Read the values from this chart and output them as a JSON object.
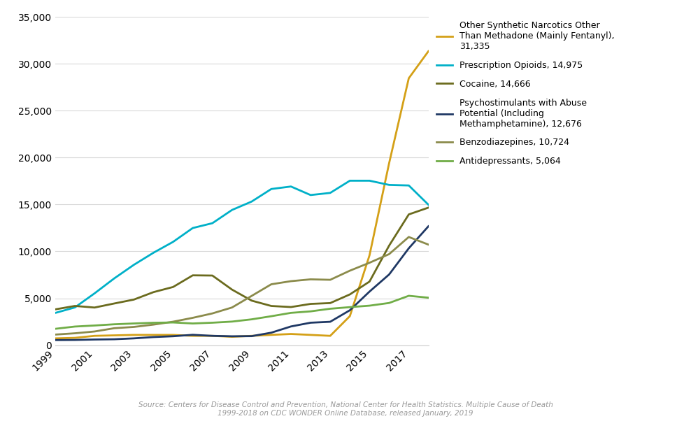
{
  "years": [
    1999,
    2000,
    2001,
    2002,
    2003,
    2004,
    2005,
    2006,
    2007,
    2008,
    2009,
    2010,
    2011,
    2012,
    2013,
    2014,
    2015,
    2016,
    2017,
    2018
  ],
  "series": {
    "fentanyl": {
      "label": "Other Synthetic Narcotics Other\nThan Methadone (Mainly Fentanyl),\n31,335",
      "color": "#D4A017",
      "values": [
        730,
        786,
        1000,
        1050,
        1100,
        1100,
        1100,
        1000,
        1000,
        900,
        1000,
        1100,
        1200,
        1100,
        1000,
        3100,
        9580,
        19413,
        28456,
        31335
      ]
    },
    "prescription_opioids": {
      "label": "Prescription Opioids, 14,975",
      "color": "#00B0C8",
      "values": [
        3442,
        4030,
        5528,
        7119,
        8568,
        9857,
        11019,
        12491,
        13007,
        14418,
        15313,
        16651,
        16917,
        16007,
        16235,
        17536,
        17536,
        17087,
        17029,
        14975
      ]
    },
    "cocaine": {
      "label": "Cocaine, 14,666",
      "color": "#6B6B1E",
      "values": [
        3822,
        4186,
        4016,
        4447,
        4864,
        5658,
        6208,
        7448,
        7426,
        5927,
        4753,
        4183,
        4068,
        4404,
        4493,
        5415,
        6784,
        10619,
        13942,
        14666
      ]
    },
    "psychostimulants": {
      "label": "Psychostimulants with Abuse\nPotential (Including\nMethamphetamine), 12,676",
      "color": "#1F3864",
      "values": [
        547,
        562,
        608,
        636,
        730,
        869,
        959,
        1110,
        1000,
        952,
        969,
        1338,
        2000,
        2400,
        2500,
        3728,
        5716,
        7542,
        10333,
        12676
      ]
    },
    "benzodiazepines": {
      "label": "Benzodiazepines, 10,724",
      "color": "#8B8B4B",
      "values": [
        1135,
        1272,
        1464,
        1813,
        1949,
        2198,
        2508,
        2920,
        3390,
        4022,
        5258,
        6497,
        6827,
        7022,
        6973,
        7945,
        8791,
        9711,
        11537,
        10724
      ]
    },
    "antidepressants": {
      "label": "Antidepressants, 5,064",
      "color": "#70AD47",
      "values": [
        1749,
        1990,
        2102,
        2231,
        2318,
        2395,
        2425,
        2318,
        2400,
        2519,
        2759,
        3091,
        3449,
        3608,
        3889,
        4059,
        4216,
        4504,
        5269,
        5064
      ]
    }
  },
  "ylim": [
    0,
    35000
  ],
  "yticks": [
    0,
    5000,
    10000,
    15000,
    20000,
    25000,
    30000,
    35000
  ],
  "source_text": "Source: Centers for Disease Control and Prevention, National Center for Health Statistics. Multiple Cause of Death\n1999-2018 on CDC WONDER Online Database, released January, 2019",
  "figsize": [
    9.88,
    6.02
  ],
  "dpi": 100,
  "background_color": "#ffffff"
}
